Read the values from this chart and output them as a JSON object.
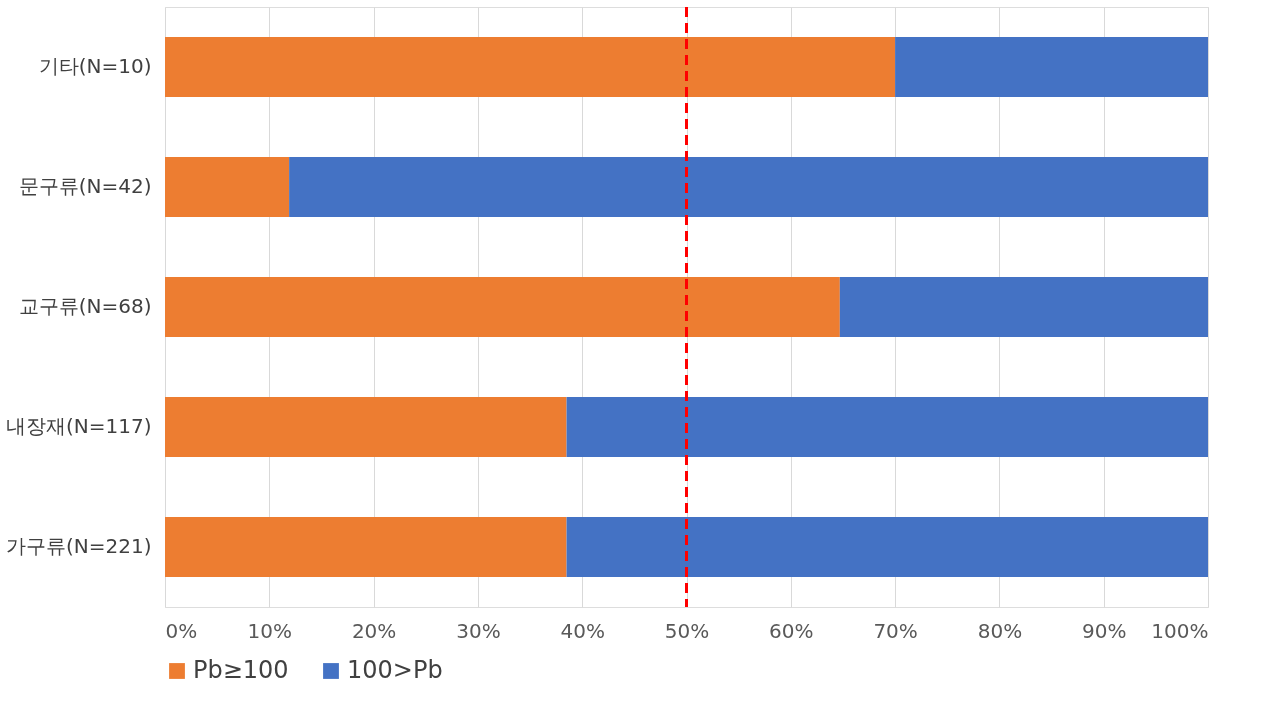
{
  "chart_data": {
    "type": "bar",
    "orientation": "horizontal",
    "stacked": true,
    "categories": [
      "기타(N=10)",
      "문구류(N=42)",
      "교구류(N=68)",
      "내장재(N=117)",
      "가구류(N=221)"
    ],
    "series": [
      {
        "name": "Pb≥100",
        "color": "#ed7d31",
        "values": [
          70,
          11.9,
          64.7,
          38.5,
          38.5
        ]
      },
      {
        "name": "100>Pb",
        "color": "#4472c4",
        "values": [
          30,
          88.1,
          35.3,
          61.5,
          61.5
        ]
      }
    ],
    "xlim": [
      0,
      100
    ],
    "xticks": [
      {
        "value": 0,
        "label": "0%"
      },
      {
        "value": 10,
        "label": "10%"
      },
      {
        "value": 20,
        "label": "20%"
      },
      {
        "value": 30,
        "label": "30%"
      },
      {
        "value": 40,
        "label": "40%"
      },
      {
        "value": 50,
        "label": "50%"
      },
      {
        "value": 60,
        "label": "60%"
      },
      {
        "value": 70,
        "label": "70%"
      },
      {
        "value": 80,
        "label": "80%"
      },
      {
        "value": 90,
        "label": "90%"
      },
      {
        "value": 100,
        "label": "100%"
      }
    ],
    "grid": "x",
    "legend": "bottom",
    "ref_lines": [
      {
        "axis": "x",
        "value": 50,
        "color": "#ff0000",
        "line_style": "dashed"
      }
    ]
  }
}
